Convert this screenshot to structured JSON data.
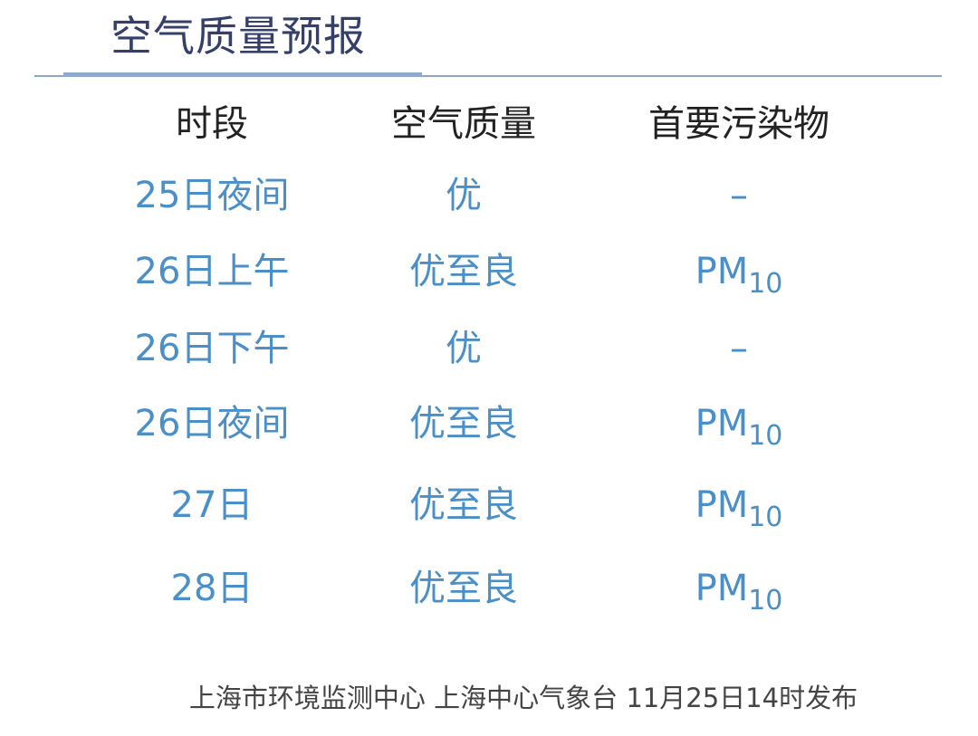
{
  "title": "空气质量预报",
  "headers": [
    "时段",
    "空气质量",
    "首要污染物"
  ],
  "rows": [
    {
      "period": "25日夜间",
      "quality": "优",
      "pollutant": "–",
      "sub": ""
    },
    {
      "period": "26日上午",
      "quality": "优至良",
      "pollutant": "PM",
      "sub": "10"
    },
    {
      "period": "26日下午",
      "quality": "优",
      "pollutant": "–",
      "sub": ""
    },
    {
      "period": "26日夜间",
      "quality": "优至良",
      "pollutant": "PM",
      "sub": "10"
    },
    {
      "period": "27日",
      "quality": "优至良",
      "pollutant": "PM",
      "sub": "10"
    },
    {
      "period": "28日",
      "quality": "优至良",
      "pollutant": "PM",
      "sub": "10"
    }
  ],
  "footer": "上海市环境监测中心 上海中心气象台 11月25日14时发布",
  "colors": {
    "title": "#34406a",
    "data": "#4a8fc7",
    "rule": "#8fa9cc"
  }
}
